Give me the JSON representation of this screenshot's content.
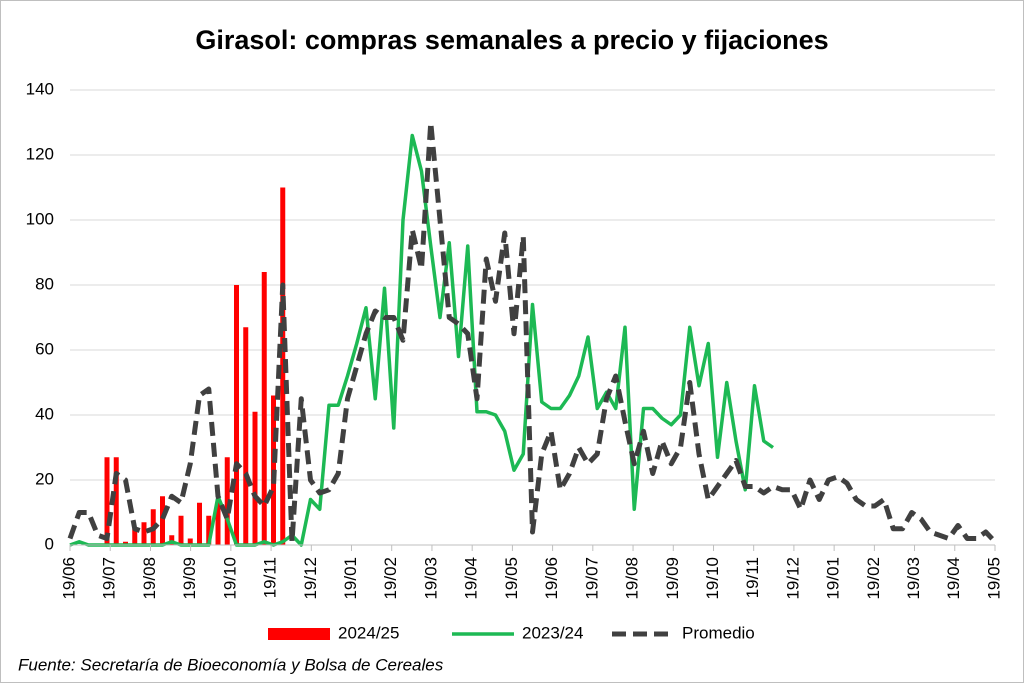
{
  "chart_data": {
    "type": "combo",
    "title": "Girasol: compras semanales a precio y fijaciones",
    "source": "Fuente: Secretaría de Bioeconomía y Bolsa de Cereales",
    "x": [
      0,
      1,
      2,
      3,
      4,
      5,
      6,
      7,
      8,
      9,
      10,
      11,
      12,
      13,
      14,
      15,
      16,
      17,
      18,
      19,
      20,
      21,
      22,
      23,
      24,
      25,
      26,
      27,
      28,
      29,
      30,
      31,
      32,
      33,
      34,
      35,
      36,
      37,
      38,
      39,
      40,
      41,
      42,
      43,
      44,
      45,
      46,
      47,
      48,
      49,
      50,
      51,
      52,
      53,
      54,
      55,
      56,
      57,
      58,
      59,
      60,
      61,
      62,
      63,
      64,
      65,
      66,
      67,
      68,
      69,
      70,
      71,
      72,
      73,
      74,
      75,
      76,
      77,
      78,
      79,
      80,
      81,
      82,
      83,
      84,
      85,
      86,
      87,
      88,
      89,
      90,
      91,
      92,
      93,
      94,
      95,
      96,
      97,
      98,
      99,
      100
    ],
    "xlim": [
      0,
      100
    ],
    "xticks": [
      {
        "value": 0,
        "label": "19/06"
      },
      {
        "value": 4.35,
        "label": "19/07"
      },
      {
        "value": 8.7,
        "label": "19/08"
      },
      {
        "value": 13.04,
        "label": "19/09"
      },
      {
        "value": 17.39,
        "label": "19/10"
      },
      {
        "value": 21.74,
        "label": "19/11"
      },
      {
        "value": 26.09,
        "label": "19/12"
      },
      {
        "value": 30.43,
        "label": "19/01"
      },
      {
        "value": 34.78,
        "label": "19/02"
      },
      {
        "value": 39.13,
        "label": "19/03"
      },
      {
        "value": 43.48,
        "label": "19/04"
      },
      {
        "value": 47.83,
        "label": "19/05"
      },
      {
        "value": 52.17,
        "label": "19/06"
      },
      {
        "value": 56.52,
        "label": "19/07"
      },
      {
        "value": 60.87,
        "label": "19/08"
      },
      {
        "value": 65.22,
        "label": "19/09"
      },
      {
        "value": 69.57,
        "label": "19/10"
      },
      {
        "value": 73.91,
        "label": "19/11"
      },
      {
        "value": 78.26,
        "label": "19/12"
      },
      {
        "value": 82.61,
        "label": "19/01"
      },
      {
        "value": 86.96,
        "label": "19/02"
      },
      {
        "value": 91.3,
        "label": "19/03"
      },
      {
        "value": 95.65,
        "label": "19/04"
      },
      {
        "value": 100,
        "label": "19/05"
      }
    ],
    "ylim": [
      0,
      140
    ],
    "yticks": [
      0,
      20,
      40,
      60,
      80,
      100,
      120,
      140
    ],
    "grid": true,
    "legend": "bottom",
    "series": [
      {
        "name": "2024/25",
        "type": "bar",
        "color": "#ff0000",
        "values": [
          null,
          null,
          null,
          null,
          27,
          27,
          1,
          5,
          7,
          11,
          15,
          3,
          9,
          2,
          13,
          9,
          14,
          27,
          80,
          67,
          41,
          84,
          46,
          110,
          null,
          null,
          null,
          null,
          null,
          null,
          null,
          null,
          null,
          null,
          null,
          null,
          null,
          null,
          null,
          null,
          null,
          null,
          null,
          null,
          null,
          null,
          null,
          null,
          null,
          null,
          null,
          null,
          null,
          null,
          null,
          null,
          null,
          null,
          null,
          null,
          null,
          null,
          null,
          null,
          null,
          null,
          null,
          null,
          null,
          null,
          null,
          null,
          null,
          null,
          null,
          null,
          null,
          null,
          null,
          null,
          null,
          null,
          null,
          null,
          null,
          null,
          null,
          null,
          null,
          null,
          null,
          null,
          null,
          null,
          null,
          null,
          null,
          null,
          null,
          null,
          null
        ]
      },
      {
        "name": "2023/24",
        "type": "line",
        "color": "#1db954",
        "values": [
          0,
          1,
          0,
          0,
          0,
          0,
          0,
          0,
          0,
          0,
          0,
          1,
          0,
          0,
          0,
          0,
          15,
          8,
          0,
          0,
          0,
          1,
          0,
          1,
          3,
          0,
          14,
          11,
          43,
          43,
          52,
          62,
          73,
          45,
          79,
          36,
          100,
          126,
          115,
          92,
          70,
          93,
          58,
          92,
          41,
          41,
          40,
          35,
          23,
          28,
          74,
          44,
          42,
          42,
          46,
          52,
          64,
          42,
          47,
          42,
          67,
          11,
          42,
          42,
          39,
          37,
          40,
          67,
          49,
          62,
          27,
          50,
          32,
          17,
          49,
          32,
          30,
          null,
          null,
          null,
          null,
          null,
          null,
          null,
          null,
          null,
          null,
          null,
          null,
          null,
          null,
          null,
          null,
          null,
          null,
          null,
          null,
          null,
          null,
          null,
          null
        ]
      },
      {
        "name": "Promedio",
        "type": "line",
        "dashed": true,
        "color": "#404040",
        "values": [
          2,
          10,
          10,
          3,
          2,
          22,
          20,
          5,
          4,
          5,
          8,
          15,
          13,
          25,
          46,
          48,
          15,
          8,
          25,
          22,
          15,
          12,
          18,
          80,
          1,
          45,
          20,
          16,
          17,
          22,
          45,
          55,
          65,
          72,
          70,
          70,
          63,
          97,
          85,
          130,
          100,
          70,
          68,
          65,
          45,
          88,
          75,
          96,
          65,
          95,
          4,
          28,
          35,
          17,
          22,
          30,
          25,
          28,
          45,
          52,
          38,
          25,
          35,
          22,
          32,
          25,
          30,
          50,
          28,
          14,
          18,
          22,
          26,
          18,
          18,
          16,
          18,
          17,
          17,
          11,
          20,
          14,
          20,
          21,
          19,
          14,
          12,
          12,
          14,
          5,
          5,
          10,
          8,
          4,
          3,
          2,
          6,
          2,
          2,
          4,
          1
        ]
      }
    ]
  }
}
